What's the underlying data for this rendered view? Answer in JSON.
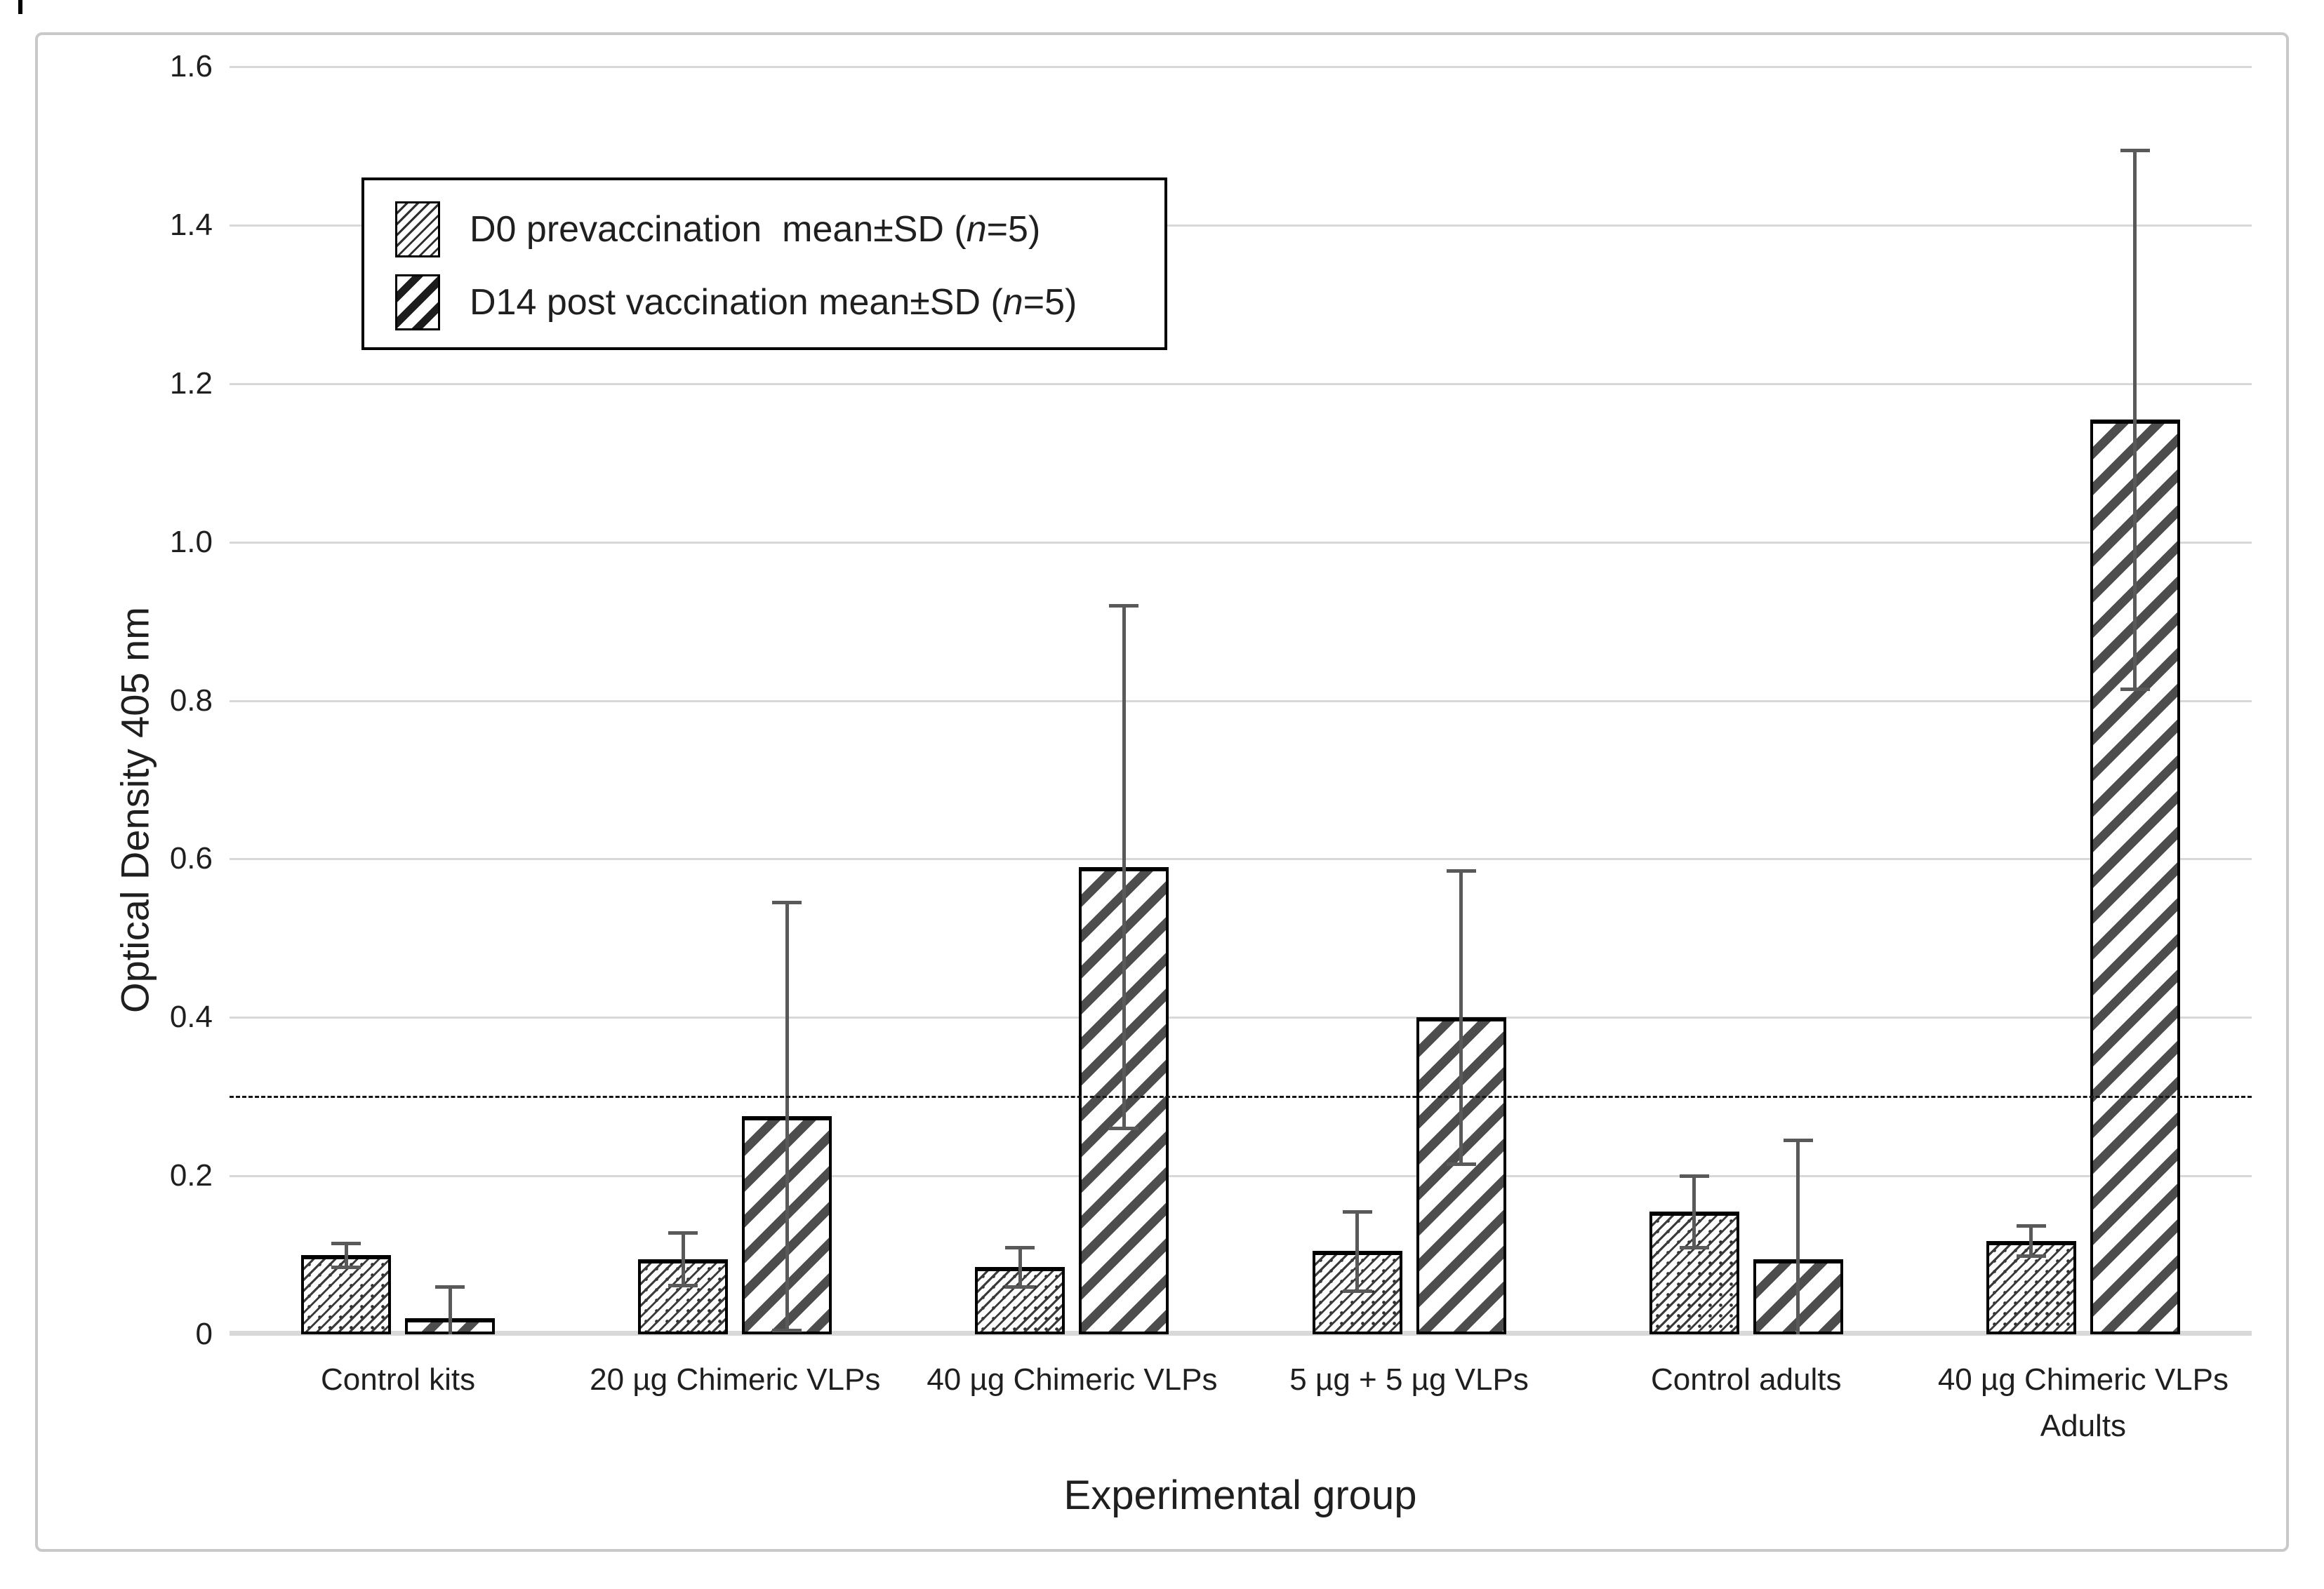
{
  "axes": {
    "x_title": "Experimental group",
    "y_title": "Optical Density 405 nm"
  },
  "legend": {
    "items": [
      {
        "pre": "D0 prevaccination  mean±SD (",
        "it": "n",
        "post": "=5)",
        "pattern": "fine-hatch"
      },
      {
        "pre": "D14 post vaccination mean±SD (",
        "it": "n",
        "post": "=5)",
        "pattern": "bold-hatch"
      }
    ]
  },
  "chart_data": {
    "type": "bar",
    "title": "",
    "categories": [
      "Control kits",
      "20 µg Chimeric VLPs",
      "40 µg Chimeric VLPs",
      "5 µg + 5 µg VLPs",
      "Control adults",
      "40 µg Chimeric VLPs\nAdults"
    ],
    "category_slugs": [
      "control-kits",
      "20ug-chimeric-vlps",
      "40ug-chimeric-vlps",
      "5ug-plus-5ug-vlps",
      "control-adults",
      "40ug-chimeric-vlps-adults"
    ],
    "series": [
      {
        "key": "d0",
        "name": "D0 prevaccination mean±SD (n=5)",
        "hatch": "fine",
        "values": [
          0.1,
          0.095,
          0.085,
          0.105,
          0.155,
          0.118
        ],
        "sd": [
          0.015,
          0.033,
          0.025,
          0.05,
          0.045,
          0.019
        ]
      },
      {
        "key": "d14",
        "name": "D14 post vaccination mean±SD (n=5)",
        "hatch": "bold",
        "values": [
          0.02,
          0.275,
          0.59,
          0.4,
          0.095,
          1.155
        ],
        "sd": [
          0.04,
          0.27,
          0.33,
          0.185,
          0.15,
          0.34
        ]
      }
    ],
    "xlabel": "Experimental group",
    "ylabel": "Optical Density 405 nm",
    "ylim": [
      0,
      1.6
    ],
    "y_ticks": [
      "0",
      "0.2",
      "0.4",
      "0.6",
      "0.8",
      "1.0",
      "1.2",
      "1.4",
      "1.6"
    ],
    "y_tick_step": 0.2,
    "cutoff_line": 0.3,
    "grid": true,
    "error_bars": "±SD, dark gray with caps",
    "legend_position": "top-left"
  },
  "colors": {
    "gridline": "#d8d8d8",
    "baseline": "#d9d9d9",
    "error_bar": "#595959",
    "bar_border": "#000000",
    "hatch_fine": "#3a3a3a",
    "hatch_bold": "#4d4d4d",
    "outer_border": "#c9c9c9",
    "text": "#1f1f1f",
    "background": "#ffffff"
  }
}
